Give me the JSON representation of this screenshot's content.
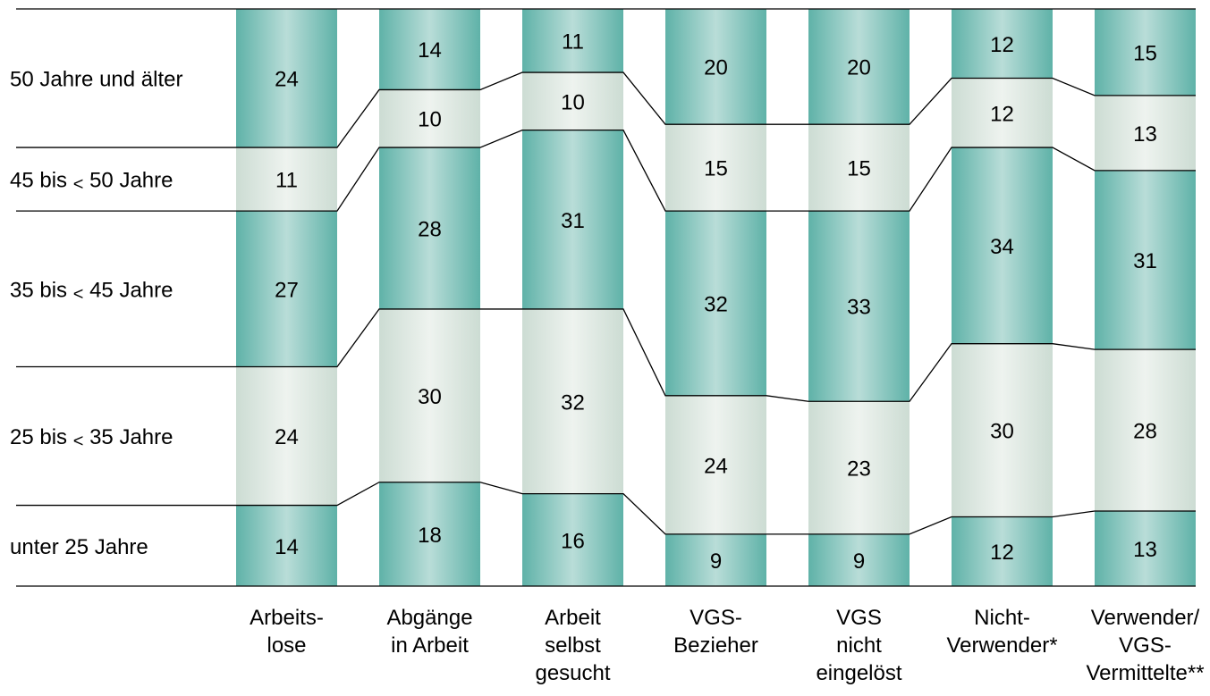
{
  "chart_data": {
    "type": "bar",
    "stacked": true,
    "percent_stacked": true,
    "title": "",
    "xlabel": "",
    "ylabel": "",
    "categories": [
      [
        "Arbeits-",
        "lose"
      ],
      [
        "Abgänge",
        "in Arbeit"
      ],
      [
        "Arbeit",
        "selbst",
        "gesucht"
      ],
      [
        "VGS-",
        "Bezieher"
      ],
      [
        "VGS",
        "nicht",
        "eingelöst"
      ],
      [
        "Nicht-",
        "Verwender*"
      ],
      [
        "Verwender/",
        "VGS-",
        "Vermittelte**"
      ]
    ],
    "series": [
      {
        "name": "unter 25 Jahre",
        "values": [
          14,
          18,
          16,
          9,
          9,
          12,
          13
        ]
      },
      {
        "name": "25 bis < 35 Jahre",
        "values": [
          24,
          30,
          32,
          24,
          23,
          30,
          28
        ]
      },
      {
        "name": "35 bis < 45 Jahre",
        "values": [
          27,
          28,
          31,
          32,
          33,
          34,
          31
        ]
      },
      {
        "name": "45 bis < 50 Jahre",
        "values": [
          11,
          10,
          10,
          15,
          15,
          12,
          13
        ]
      },
      {
        "name": "50 Jahre und älter",
        "values": [
          24,
          14,
          11,
          20,
          20,
          12,
          15
        ]
      }
    ],
    "row_labels": [
      {
        "prefix": "unter 25 Jahre",
        "lt": "",
        "suffix": ""
      },
      {
        "prefix": "25 bis",
        "lt": "<",
        "suffix": "35 Jahre"
      },
      {
        "prefix": "35 bis",
        "lt": "<",
        "suffix": "45 Jahre"
      },
      {
        "prefix": "45 bis",
        "lt": "<",
        "suffix": "50 Jahre"
      },
      {
        "prefix": "50 Jahre und älter",
        "lt": "",
        "suffix": ""
      }
    ],
    "ylim": [
      0,
      100
    ],
    "grid": false,
    "legend": "left"
  },
  "colors": {
    "dark_edge": "#5fb2a8",
    "dark_center": "#b9ddd8",
    "light_edge": "#ccdcd3",
    "light_center": "#eef3ef",
    "line": "#000000"
  }
}
